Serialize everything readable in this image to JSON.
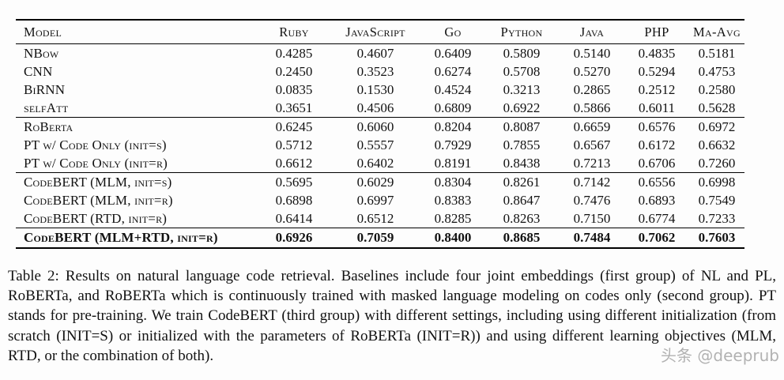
{
  "table": {
    "columns": [
      "Model",
      "Ruby",
      "JavaScript",
      "Go",
      "Python",
      "Java",
      "PHP",
      "Ma-Avg"
    ],
    "rows": [
      {
        "model": "NBow",
        "values": [
          "0.4285",
          "0.4607",
          "0.6409",
          "0.5809",
          "0.5140",
          "0.4835",
          "0.5181"
        ],
        "group": 1,
        "bold": false
      },
      {
        "model": "CNN",
        "values": [
          "0.2450",
          "0.3523",
          "0.6274",
          "0.5708",
          "0.5270",
          "0.5294",
          "0.4753"
        ],
        "group": 1,
        "bold": false
      },
      {
        "model": "BiRNN",
        "values": [
          "0.0835",
          "0.1530",
          "0.4524",
          "0.3213",
          "0.2865",
          "0.2512",
          "0.2580"
        ],
        "group": 1,
        "bold": false
      },
      {
        "model": "selfAtt",
        "values": [
          "0.3651",
          "0.4506",
          "0.6809",
          "0.6922",
          "0.5866",
          "0.6011",
          "0.5628"
        ],
        "group": 1,
        "bold": false
      },
      {
        "model": "RoBerta",
        "values": [
          "0.6245",
          "0.6060",
          "0.8204",
          "0.8087",
          "0.6659",
          "0.6576",
          "0.6972"
        ],
        "group": 2,
        "bold": false
      },
      {
        "model": "PT w/ Code Only (init=s)",
        "values": [
          "0.5712",
          "0.5557",
          "0.7929",
          "0.7855",
          "0.6567",
          "0.6172",
          "0.6632"
        ],
        "group": 2,
        "bold": false
      },
      {
        "model": "PT w/ Code Only (init=r)",
        "values": [
          "0.6612",
          "0.6402",
          "0.8191",
          "0.8438",
          "0.7213",
          "0.6706",
          "0.7260"
        ],
        "group": 2,
        "bold": false
      },
      {
        "model": "CodeBERT (MLM, init=s)",
        "values": [
          "0.5695",
          "0.6029",
          "0.8304",
          "0.8261",
          "0.7142",
          "0.6556",
          "0.6998"
        ],
        "group": 3,
        "bold": false
      },
      {
        "model": "CodeBERT (MLM, init=r)",
        "values": [
          "0.6898",
          "0.6997",
          "0.8383",
          "0.8647",
          "0.7476",
          "0.6893",
          "0.7549"
        ],
        "group": 3,
        "bold": false
      },
      {
        "model": "CodeBERT (RTD, init=r)",
        "values": [
          "0.6414",
          "0.6512",
          "0.8285",
          "0.8263",
          "0.7150",
          "0.6774",
          "0.7233"
        ],
        "group": 3,
        "bold": false
      },
      {
        "model": "CodeBERT (MLM+RTD, init=r)",
        "values": [
          "0.6926",
          "0.7059",
          "0.8400",
          "0.8685",
          "0.7484",
          "0.7062",
          "0.7603"
        ],
        "group": 4,
        "bold": true
      }
    ]
  },
  "document": {
    "caption": "Table 2:  Results on natural language code retrieval. Baselines include four joint embeddings (first group) of NL and PL, RoBERTa, and RoBERTa which is continuously trained with masked language modeling on codes only (second group). PT stands for pre-training. We train CodeBERT (third group) with different settings, including using different initialization (from scratch (INIT=S) or initialized with the parameters of RoBERTa (INIT=R)) and using different learning objectives (MLM, RTD, or the combination of both).",
    "watermark": "头条 @deeprub"
  }
}
